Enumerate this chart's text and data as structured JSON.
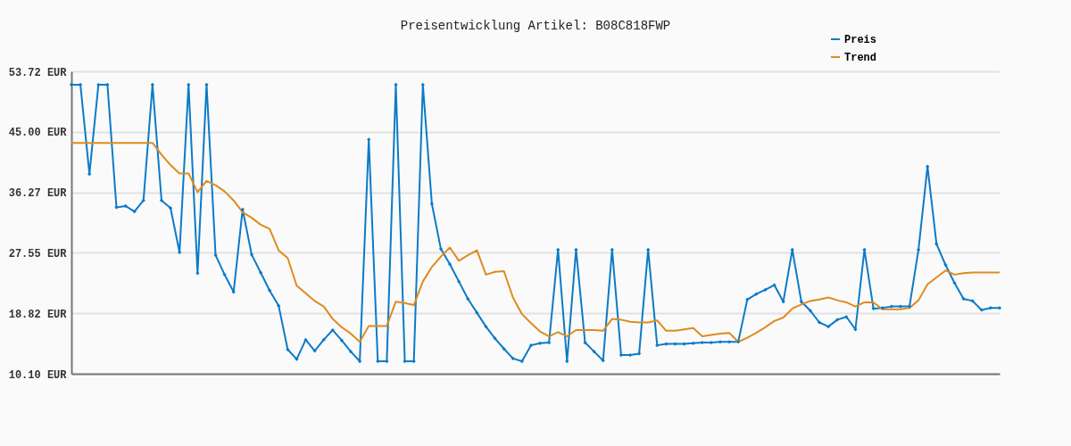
{
  "chart_data": {
    "type": "line",
    "title": "Preisentwicklung Artikel: B08C818FWP",
    "categories": [
      null,
      null,
      null,
      null,
      null,
      null,
      null,
      null,
      null,
      null,
      null,
      null,
      null,
      null,
      null,
      null,
      null,
      null,
      null,
      null,
      null,
      null,
      null,
      null,
      null,
      null,
      null,
      null,
      null,
      null,
      null,
      null,
      null,
      null,
      null,
      null,
      null,
      null,
      null,
      null,
      null,
      null,
      null,
      null,
      null,
      null,
      null,
      null,
      null,
      null,
      null,
      null,
      null,
      null,
      null,
      null,
      null,
      null,
      null,
      null,
      null,
      null,
      null,
      null,
      null,
      null,
      null,
      null,
      null,
      null,
      null,
      null,
      null,
      null,
      null,
      null,
      null,
      null,
      null,
      null,
      null,
      null,
      null,
      null,
      null,
      null,
      null,
      null,
      null,
      null,
      null,
      null,
      null,
      null,
      null,
      null,
      null,
      null,
      null,
      null,
      null,
      null,
      null,
      null
    ],
    "series": [
      {
        "name": "Preis",
        "color": "#0b7bc8",
        "marker": "diamond",
        "values": [
          51.8,
          51.8,
          38.9,
          51.8,
          51.8,
          34.1,
          34.3,
          33.5,
          35.1,
          51.8,
          35.1,
          34.0,
          27.6,
          51.8,
          24.6,
          51.8,
          27.2,
          24.4,
          21.9,
          33.8,
          27.3,
          24.7,
          22.1,
          19.9,
          13.6,
          12.2,
          15.0,
          13.4,
          15.0,
          16.4,
          14.9,
          13.3,
          11.9,
          43.9,
          11.9,
          11.9,
          51.8,
          11.9,
          11.9,
          51.8,
          34.6,
          28.1,
          25.9,
          23.4,
          20.9,
          18.9,
          16.9,
          15.2,
          13.7,
          12.3,
          11.9,
          14.2,
          14.5,
          14.6,
          28.0,
          11.9,
          28.0,
          14.6,
          13.3,
          12.0,
          28.0,
          12.8,
          12.8,
          13.0,
          28.0,
          14.2,
          14.4,
          14.4,
          14.4,
          14.5,
          14.6,
          14.6,
          14.7,
          14.7,
          14.7,
          20.8,
          21.6,
          22.2,
          22.9,
          20.5,
          28.0,
          20.5,
          19.2,
          17.5,
          16.9,
          17.9,
          18.3,
          16.5,
          28.0,
          19.5,
          19.6,
          19.8,
          19.8,
          19.8,
          28.0,
          40.0,
          28.8,
          25.8,
          23.2,
          20.9,
          20.6,
          19.3,
          19.6,
          19.6
        ]
      },
      {
        "name": "Trend",
        "color": "#e08a1e",
        "marker": "none",
        "values": [
          43.4,
          43.4,
          43.4,
          43.4,
          43.4,
          43.4,
          43.4,
          43.4,
          43.4,
          43.4,
          41.7,
          40.2,
          39.0,
          39.0,
          36.3,
          37.9,
          37.3,
          36.4,
          35.1,
          33.4,
          32.6,
          31.6,
          31.0,
          27.9,
          26.8,
          22.8,
          21.7,
          20.6,
          19.8,
          18.0,
          16.8,
          15.9,
          14.7,
          17.0,
          17.0,
          17.0,
          20.5,
          20.3,
          20.0,
          23.4,
          25.5,
          27.0,
          28.3,
          26.4,
          27.2,
          27.9,
          24.4,
          24.8,
          24.9,
          21.1,
          18.7,
          17.4,
          16.2,
          15.5,
          16.1,
          15.5,
          16.4,
          16.4,
          16.4,
          16.3,
          18.0,
          17.9,
          17.6,
          17.5,
          17.5,
          17.8,
          16.3,
          16.3,
          16.5,
          16.7,
          15.5,
          15.7,
          15.9,
          16.0,
          14.7,
          15.3,
          16.0,
          16.8,
          17.7,
          18.2,
          19.5,
          20.1,
          20.6,
          20.8,
          21.1,
          20.7,
          20.4,
          19.8,
          20.4,
          20.4,
          19.4,
          19.4,
          19.4,
          19.6,
          20.7,
          23.0,
          24.0,
          25.0,
          24.4,
          24.6,
          24.7,
          24.7,
          24.7,
          24.7
        ]
      }
    ],
    "ylim": [
      10.1,
      53.72
    ],
    "yticks": [
      {
        "value": 10.1,
        "label": "10.10 EUR"
      },
      {
        "value": 18.82,
        "label": "18.82 EUR"
      },
      {
        "value": 27.55,
        "label": "27.55 EUR"
      },
      {
        "value": 36.27,
        "label": "36.27 EUR"
      },
      {
        "value": 45.0,
        "label": "45.00 EUR"
      },
      {
        "value": 53.72,
        "label": "53.72 EUR"
      }
    ],
    "grid": "y",
    "legend": "top right",
    "tick_labels": "y"
  }
}
